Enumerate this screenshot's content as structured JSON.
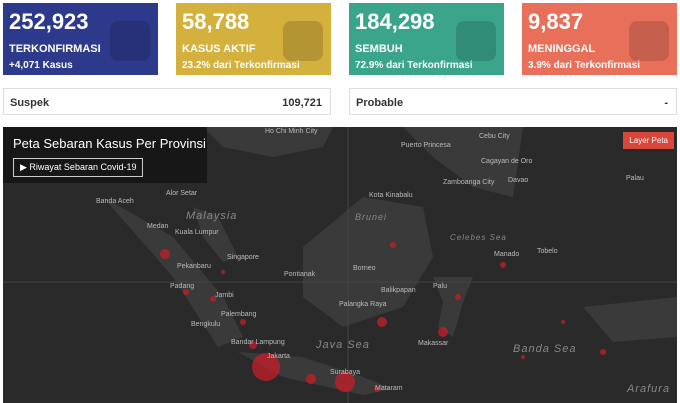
{
  "cards": [
    {
      "value": "252,923",
      "label": "TERKONFIRMASI",
      "sub": "+4,071 Kasus"
    },
    {
      "value": "58,788",
      "label": "KASUS AKTIF",
      "sub": "23.2% dari Terkonfirmasi"
    },
    {
      "value": "184,298",
      "label": "SEMBUH",
      "sub": "72.9% dari Terkonfirmasi"
    },
    {
      "value": "9,837",
      "label": "MENINGGAL",
      "sub": "3.9% dari Terkonfirmasi"
    }
  ],
  "suspek": {
    "label": "Suspek",
    "value": "109,721"
  },
  "select": {
    "label": "Probable",
    "arrow": "-"
  },
  "map": {
    "title": "Peta Sebaran Kasus Per Provinsi",
    "button": "▶ Riwayat Sebaran Covid-19",
    "layer": "Layer Peta",
    "places": [
      "Ho Chi Minh City",
      "Puerto Princesa",
      "Cebu City",
      "Cagayan de Oro",
      "Zamboanga City",
      "Davao",
      "Palau",
      "Alor Setar",
      "Banda Aceh",
      "Kota Kinabalu",
      "Malaysia",
      "Medan",
      "Brunei",
      "Kuala Lumpur",
      "Singapore",
      "Manado",
      "Tobelo",
      "Pekanbaru",
      "Pontianak",
      "Borneo",
      "Padang",
      "Jambi",
      "Balikpapan",
      "Palu",
      "Palangka Raya",
      "Palembang",
      "Bengkulu",
      "Makassar",
      "Bandar Lampung",
      "Java Sea",
      "Banda Sea",
      "Jakarta",
      "Surabaya",
      "Mataram",
      "Arafura",
      "Celebes Sea"
    ]
  }
}
